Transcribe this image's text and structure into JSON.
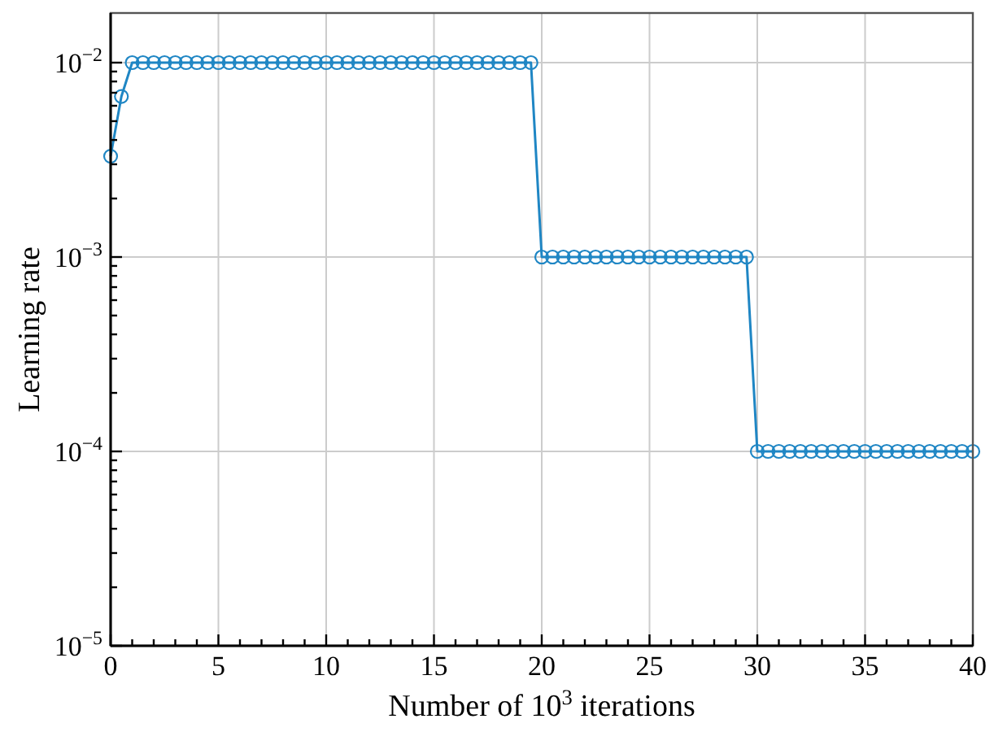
{
  "chart_data": {
    "type": "line",
    "xlabel": "Number of 10$^{3}$ iterations",
    "ylabel": "Learning rate",
    "log": "y",
    "grid": true,
    "marker": "circle",
    "line_style": "solid",
    "xlim": [
      0,
      40
    ],
    "ylim": [
      1e-05,
      0.018
    ],
    "xticks": [
      0,
      {
        "value": 1,
        "label": null
      },
      {
        "value": 2,
        "label": null
      },
      {
        "value": 3,
        "label": null
      },
      {
        "value": 4,
        "label": null
      },
      5,
      {
        "value": 6,
        "label": null
      },
      {
        "value": 7,
        "label": null
      },
      {
        "value": 8,
        "label": null
      },
      {
        "value": 9,
        "label": null
      },
      10,
      {
        "value": 11,
        "label": null
      },
      {
        "value": 12,
        "label": null
      },
      {
        "value": 13,
        "label": null
      },
      {
        "value": 14,
        "label": null
      },
      15,
      {
        "value": 16,
        "label": null
      },
      {
        "value": 17,
        "label": null
      },
      {
        "value": 18,
        "label": null
      },
      {
        "value": 19,
        "label": null
      },
      20,
      {
        "value": 21,
        "label": null
      },
      {
        "value": 22,
        "label": null
      },
      {
        "value": 23,
        "label": null
      },
      {
        "value": 24,
        "label": null
      },
      25,
      {
        "value": 26,
        "label": null
      },
      {
        "value": 27,
        "label": null
      },
      {
        "value": 28,
        "label": null
      },
      {
        "value": 29,
        "label": null
      },
      30,
      {
        "value": 31,
        "label": null
      },
      {
        "value": 32,
        "label": null
      },
      {
        "value": 33,
        "label": null
      },
      {
        "value": 34,
        "label": null
      },
      35,
      {
        "value": 36,
        "label": null
      },
      {
        "value": 37,
        "label": null
      },
      {
        "value": 38,
        "label": null
      },
      {
        "value": 39,
        "label": null
      },
      40
    ],
    "yticks": [
      {
        "value": 1e-05,
        "label": "10$^{−5}$"
      },
      {
        "value": 2e-05,
        "label": null
      },
      {
        "value": 3e-05,
        "label": null
      },
      {
        "value": 4e-05,
        "label": null
      },
      {
        "value": 5e-05,
        "label": null
      },
      {
        "value": 6e-05,
        "label": null
      },
      {
        "value": 7e-05,
        "label": null
      },
      {
        "value": 8e-05,
        "label": null
      },
      {
        "value": 9e-05,
        "label": null
      },
      {
        "value": 0.0001,
        "label": "10$^{−4}$"
      },
      {
        "value": 0.0002,
        "label": null
      },
      {
        "value": 0.0003,
        "label": null
      },
      {
        "value": 0.0004,
        "label": null
      },
      {
        "value": 0.0005,
        "label": null
      },
      {
        "value": 0.0006,
        "label": null
      },
      {
        "value": 0.0007,
        "label": null
      },
      {
        "value": 0.0008,
        "label": null
      },
      {
        "value": 0.0009,
        "label": null
      },
      {
        "value": 0.001,
        "label": "10$^{−3}$"
      },
      {
        "value": 0.002,
        "label": null
      },
      {
        "value": 0.003,
        "label": null
      },
      {
        "value": 0.004,
        "label": null
      },
      {
        "value": 0.005,
        "label": null
      },
      {
        "value": 0.006,
        "label": null
      },
      {
        "value": 0.007,
        "label": null
      },
      {
        "value": 0.008,
        "label": null
      },
      {
        "value": 0.009,
        "label": null
      },
      {
        "value": 0.01,
        "label": "10$^{−2}$"
      }
    ],
    "x": [
      0,
      0.5,
      1,
      1.5,
      2,
      2.5,
      3,
      3.5,
      4,
      4.5,
      5,
      5.5,
      6,
      6.5,
      7,
      7.5,
      8,
      8.5,
      9,
      9.5,
      10,
      10.5,
      11,
      11.5,
      12,
      12.5,
      13,
      13.5,
      14,
      14.5,
      15,
      15.5,
      16,
      16.5,
      17,
      17.5,
      18,
      18.5,
      19,
      19.5,
      20,
      20.5,
      21,
      21.5,
      22,
      22.5,
      23,
      23.5,
      24,
      24.5,
      25,
      25.5,
      26,
      26.5,
      27,
      27.5,
      28,
      28.5,
      29,
      29.5,
      30,
      30.5,
      31,
      31.5,
      32,
      32.5,
      33,
      33.5,
      34,
      34.5,
      35,
      35.5,
      36,
      36.5,
      37,
      37.5,
      38,
      38.5,
      39,
      39.5,
      40
    ],
    "series": [
      {
        "color": "#1f86c4",
        "values": [
          0.0033,
          0.0067,
          0.01,
          0.01,
          0.01,
          0.01,
          0.01,
          0.01,
          0.01,
          0.01,
          0.01,
          0.01,
          0.01,
          0.01,
          0.01,
          0.01,
          0.01,
          0.01,
          0.01,
          0.01,
          0.01,
          0.01,
          0.01,
          0.01,
          0.01,
          0.01,
          0.01,
          0.01,
          0.01,
          0.01,
          0.01,
          0.01,
          0.01,
          0.01,
          0.01,
          0.01,
          0.01,
          0.01,
          0.01,
          0.01,
          0.001,
          0.001,
          0.001,
          0.001,
          0.001,
          0.001,
          0.001,
          0.001,
          0.001,
          0.001,
          0.001,
          0.001,
          0.001,
          0.001,
          0.001,
          0.001,
          0.001,
          0.001,
          0.001,
          0.001,
          0.0001,
          0.0001,
          0.0001,
          0.0001,
          0.0001,
          0.0001,
          0.0001,
          0.0001,
          0.0001,
          0.0001,
          0.0001,
          0.0001,
          0.0001,
          0.0001,
          0.0001,
          0.0001,
          0.0001,
          0.0001,
          0.0001,
          0.0001,
          0.0001
        ]
      }
    ]
  }
}
